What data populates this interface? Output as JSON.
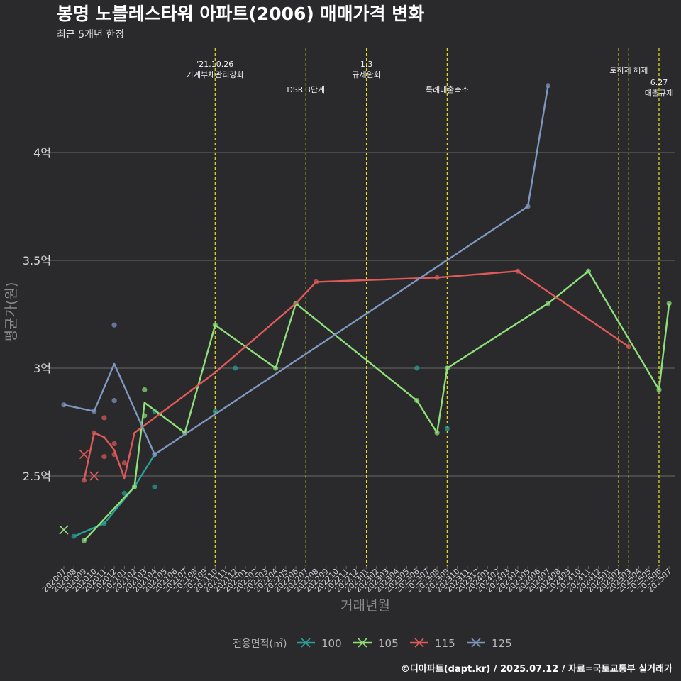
{
  "chart_data": {
    "type": "line",
    "title": "봉명 노블레스타워 아파트(2006) 매매가격 변화",
    "subtitle": "최근 5개년 한정",
    "xlabel": "거래년월",
    "ylabel": "평균가(원)",
    "caption": "©디아파트(dapt.kr) / 2025.07.12 / 자료=국토교통부 실거래가",
    "ylim": [
      2.1,
      4.45
    ],
    "y_ticks": [
      {
        "value": 2.5,
        "label": "2.5억"
      },
      {
        "value": 3.0,
        "label": "3억"
      },
      {
        "value": 3.5,
        "label": "3.5억"
      },
      {
        "value": 4.0,
        "label": "4억"
      }
    ],
    "x_categories": [
      "202007",
      "202008",
      "202009",
      "202010",
      "202011",
      "202012",
      "202101",
      "202102",
      "202103",
      "202104",
      "202105",
      "202106",
      "202107",
      "202108",
      "202109",
      "202110",
      "202111",
      "202112",
      "202201",
      "202202",
      "202203",
      "202204",
      "202205",
      "202206",
      "202207",
      "202208",
      "202209",
      "202210",
      "202211",
      "202212",
      "202301",
      "202302",
      "202303",
      "202304",
      "202305",
      "202306",
      "202307",
      "202308",
      "202309",
      "202310",
      "202311",
      "202312",
      "202401",
      "202402",
      "202403",
      "202404",
      "202405",
      "202406",
      "202407",
      "202408",
      "202409",
      "202410",
      "202411",
      "202412",
      "202501",
      "202502",
      "202503",
      "202504",
      "202505",
      "202506",
      "202507"
    ],
    "legend_title": "전용면적(㎡)",
    "legend_position": "bottom",
    "grid": true,
    "annotations": [
      {
        "x": "202110",
        "lines": [
          "'21.10.26",
          "가계부채관리강화"
        ],
        "level": 0
      },
      {
        "x": "202207",
        "lines": [
          "DSR 3단계"
        ],
        "level": 2
      },
      {
        "x": "202301",
        "lines": [
          "1.3",
          "규제완화"
        ],
        "level": 0
      },
      {
        "x": "202309",
        "lines": [
          "특례대출축소"
        ],
        "level": 2
      },
      {
        "x": "202502",
        "lines": [],
        "level": 1
      },
      {
        "x": "202503",
        "lines": [
          "토허제 해제"
        ],
        "level": 1
      },
      {
        "x": "202506",
        "lines": [
          "6.27",
          "대출규제"
        ],
        "level": 1.5
      }
    ],
    "series": [
      {
        "name": "100",
        "color": "#2aa198",
        "line": [
          [
            "202008",
            2.22
          ],
          [
            "202011",
            2.28
          ],
          [
            "202102",
            2.45
          ],
          [
            "202104",
            2.6
          ]
        ],
        "points": [
          [
            "202008",
            2.22
          ],
          [
            "202011",
            2.28
          ],
          [
            "202101",
            2.42
          ],
          [
            "202102",
            2.45
          ],
          [
            "202104",
            2.6
          ],
          [
            "202104",
            2.8
          ],
          [
            "202104",
            2.45
          ],
          [
            "202112",
            3.0
          ],
          [
            "202306",
            3.0
          ],
          [
            "202309",
            2.72
          ],
          [
            "202110",
            2.8
          ]
        ],
        "crosses": []
      },
      {
        "name": "105",
        "color": "#8fe07a",
        "line": [
          [
            "202009",
            2.2
          ],
          [
            "202102",
            2.45
          ],
          [
            "202103",
            2.84
          ],
          [
            "202107",
            2.7
          ],
          [
            "202110",
            3.2
          ],
          [
            "202204",
            3.0
          ],
          [
            "202206",
            3.3
          ],
          [
            "202306",
            2.85
          ],
          [
            "202308",
            2.7
          ],
          [
            "202309",
            3.0
          ],
          [
            "202407",
            3.3
          ],
          [
            "202411",
            3.45
          ],
          [
            "202506",
            2.9
          ],
          [
            "202507",
            3.3
          ]
        ],
        "points": [
          [
            "202009",
            2.2
          ],
          [
            "202102",
            2.45
          ],
          [
            "202103",
            2.9
          ],
          [
            "202103",
            2.78
          ],
          [
            "202107",
            2.7
          ],
          [
            "202110",
            3.2
          ],
          [
            "202204",
            3.0
          ],
          [
            "202206",
            3.3
          ],
          [
            "202306",
            2.85
          ],
          [
            "202308",
            2.7
          ],
          [
            "202309",
            3.0
          ],
          [
            "202407",
            3.3
          ],
          [
            "202411",
            3.45
          ],
          [
            "202506",
            2.9
          ],
          [
            "202507",
            3.3
          ]
        ],
        "crosses": [
          [
            "202007",
            2.25
          ]
        ]
      },
      {
        "name": "115",
        "color": "#e05a5a",
        "line": [
          [
            "202009",
            2.48
          ],
          [
            "202010",
            2.7
          ],
          [
            "202011",
            2.68
          ],
          [
            "202012",
            2.62
          ],
          [
            "202101",
            2.49
          ],
          [
            "202102",
            2.7
          ],
          [
            "202110",
            2.98
          ],
          [
            "202206",
            3.3
          ],
          [
            "202208",
            3.4
          ],
          [
            "202308",
            3.42
          ],
          [
            "202404",
            3.45
          ],
          [
            "202503",
            3.1
          ]
        ],
        "points": [
          [
            "202009",
            2.48
          ],
          [
            "202010",
            2.7
          ],
          [
            "202011",
            2.77
          ],
          [
            "202011",
            2.59
          ],
          [
            "202012",
            2.65
          ],
          [
            "202012",
            2.6
          ],
          [
            "202101",
            2.56
          ],
          [
            "202208",
            3.4
          ],
          [
            "202308",
            3.42
          ],
          [
            "202404",
            3.45
          ],
          [
            "202503",
            3.1
          ]
        ],
        "crosses": [
          [
            "202009",
            2.6
          ],
          [
            "202010",
            2.5
          ]
        ]
      },
      {
        "name": "125",
        "color": "#7f98c0",
        "line": [
          [
            "202007",
            2.83
          ],
          [
            "202010",
            2.8
          ],
          [
            "202012",
            3.02
          ],
          [
            "202104",
            2.6
          ],
          [
            "202405",
            3.75
          ],
          [
            "202407",
            4.31
          ]
        ],
        "points": [
          [
            "202007",
            2.83
          ],
          [
            "202010",
            2.8
          ],
          [
            "202012",
            3.2
          ],
          [
            "202012",
            2.85
          ],
          [
            "202104",
            2.6
          ],
          [
            "202405",
            3.75
          ],
          [
            "202407",
            4.31
          ]
        ],
        "crosses": []
      }
    ]
  }
}
